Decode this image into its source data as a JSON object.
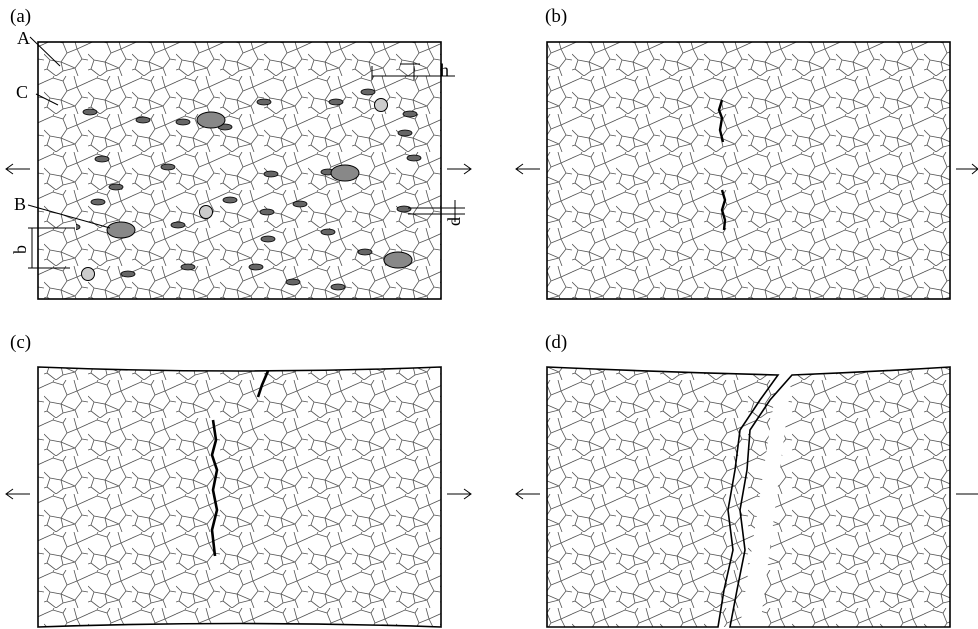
{
  "panels": [
    {
      "label": "(a)"
    },
    {
      "label": "(b)"
    },
    {
      "label": "(c)"
    },
    {
      "label": "(d)"
    }
  ],
  "annotations": {
    "a": "A",
    "c": "C",
    "b_particle": "B",
    "h": "h",
    "d": "d",
    "b": "b"
  }
}
